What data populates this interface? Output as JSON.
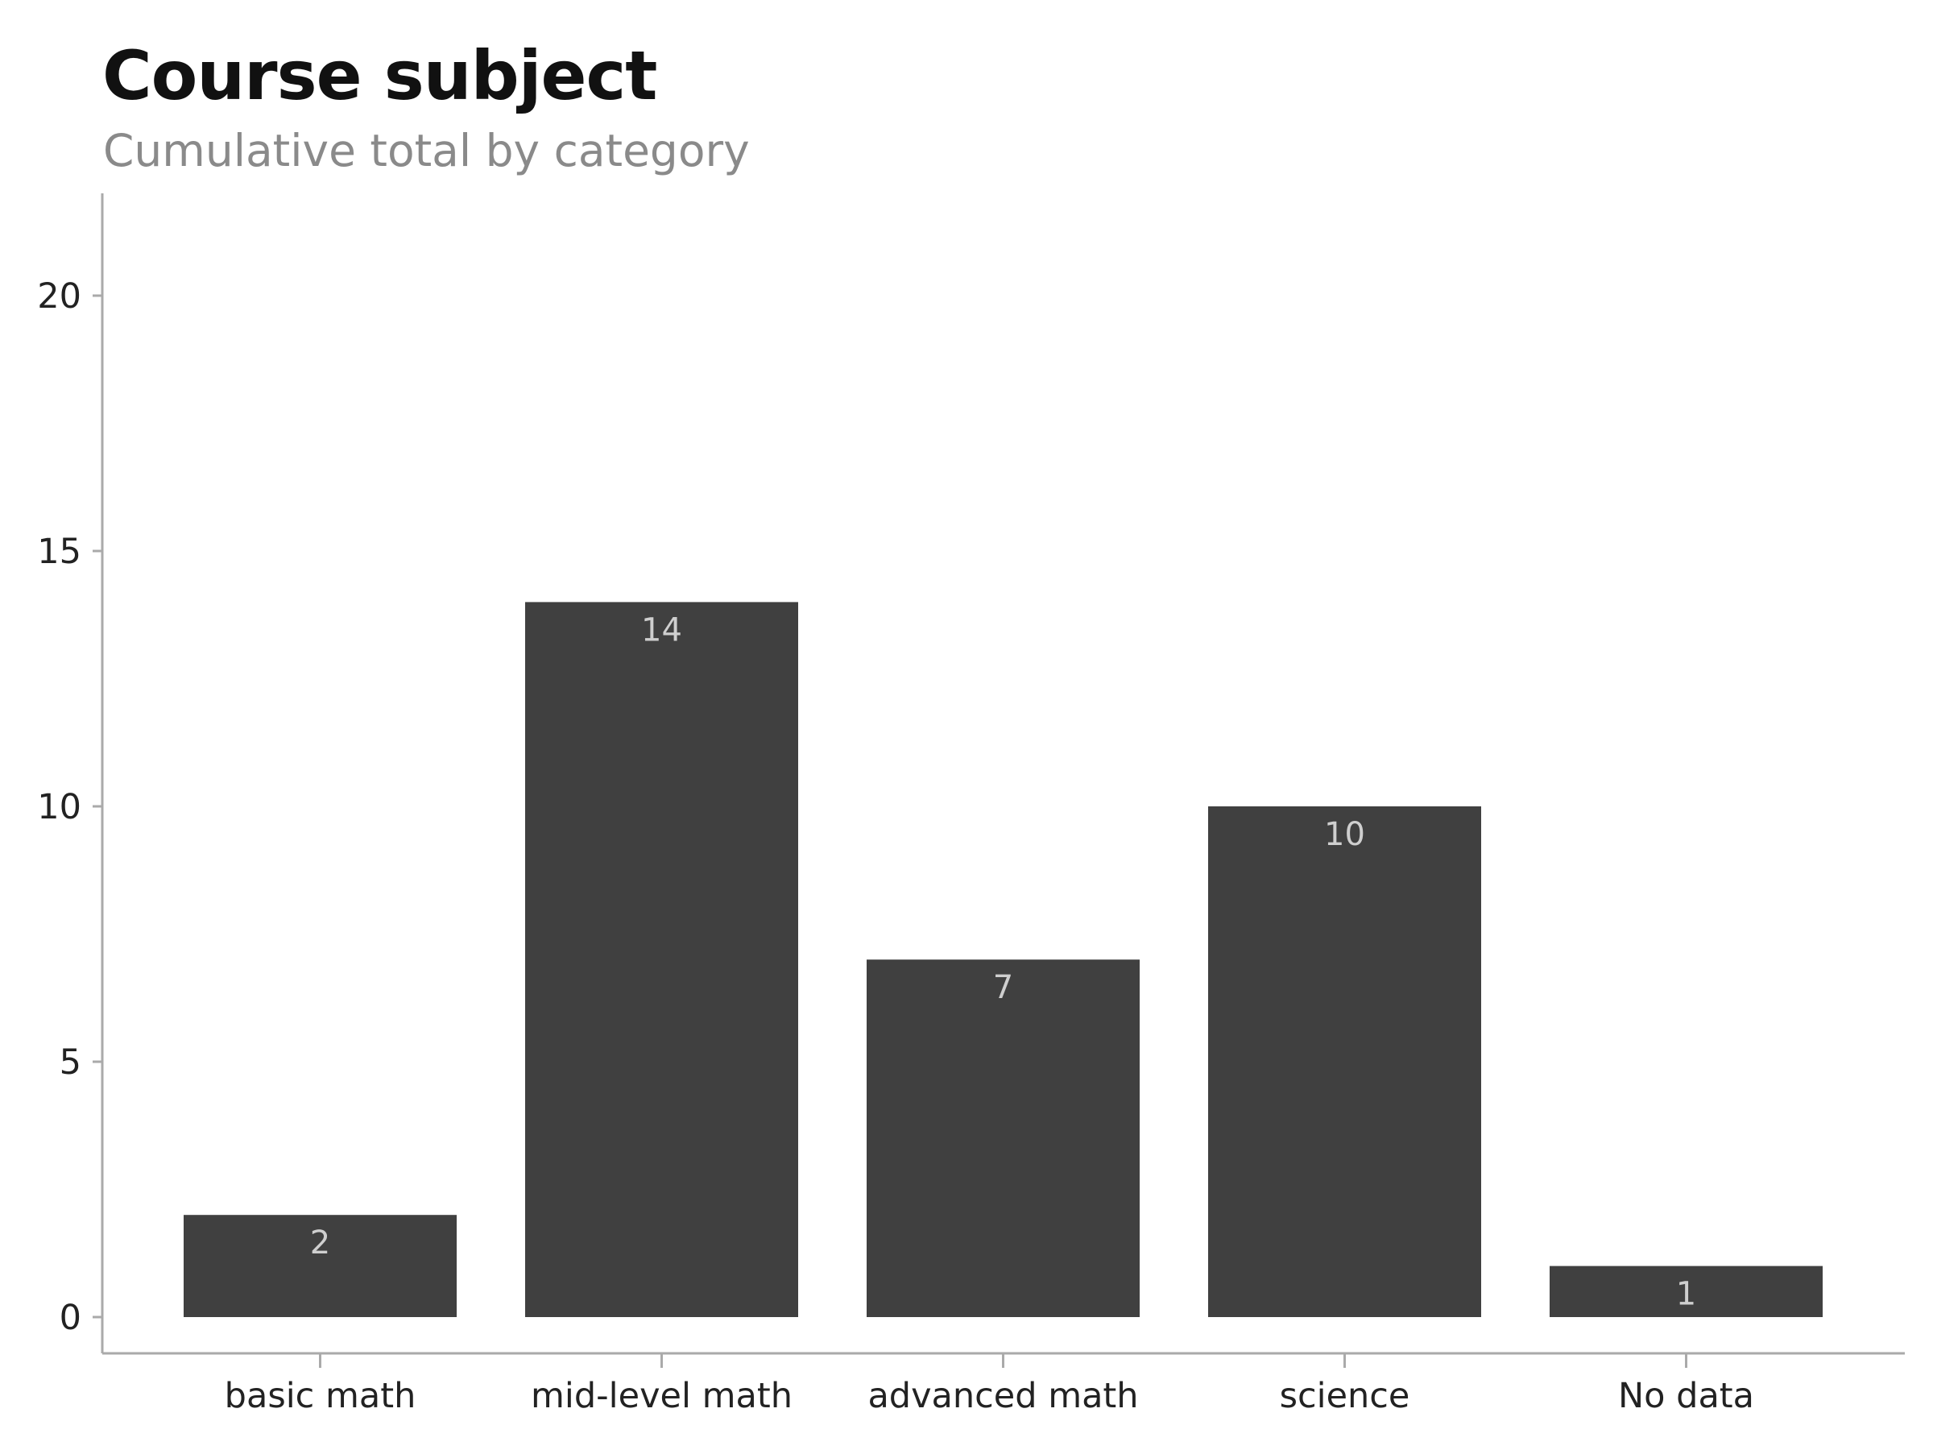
{
  "chart_data": {
    "type": "bar",
    "title": "Course subject",
    "subtitle": "Cumulative total by category",
    "categories": [
      "basic math",
      "mid-level math",
      "advanced math",
      "science",
      "No data"
    ],
    "values": [
      2,
      14,
      7,
      10,
      1
    ],
    "data_labels": [
      "2",
      "14",
      "7",
      "10",
      "1"
    ],
    "xlabel": "",
    "ylabel": "",
    "ylim": [
      -0.7,
      22
    ],
    "yticks": [
      0,
      5,
      10,
      15,
      20
    ],
    "ytick_labels": [
      "0",
      "5",
      "10",
      "15",
      "20"
    ],
    "grid": false,
    "bar_color": "#404040",
    "label_color": "#cfcfcf",
    "axis_color": "#aaaaaa"
  }
}
